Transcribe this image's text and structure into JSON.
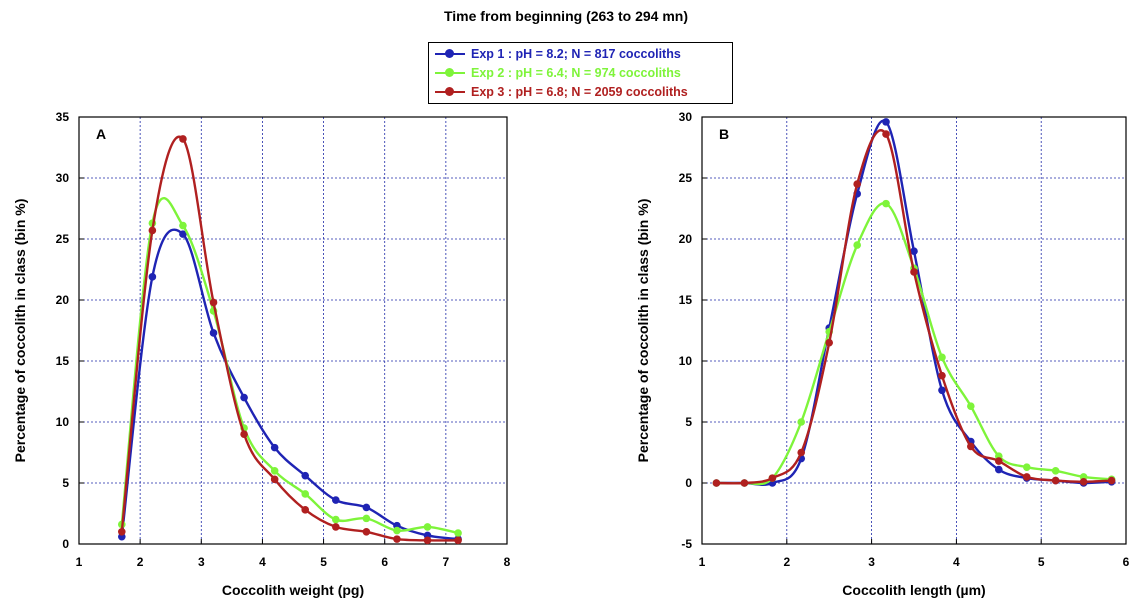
{
  "figure_title": "Time from beginning (263  to 294 mn)",
  "legend": [
    {
      "label": "Exp 1 : pH = 8.2; N = 817 coccoliths",
      "color": "#1f24b4"
    },
    {
      "label": "Exp 2 : pH = 6.4;  N = 974 coccoliths",
      "color": "#7ef43a"
    },
    {
      "label": "Exp 3 : pH = 6.8; N = 2059 coccoliths",
      "color": "#b02020"
    }
  ],
  "chart_data": [
    {
      "type": "line",
      "panel_label": "A",
      "xlabel": "Coccolith weight (pg)",
      "ylabel": "Percentage of coccolith in class (bin %)",
      "xlim": [
        1,
        8
      ],
      "ylim": [
        0,
        35
      ],
      "xticks": [
        1,
        2,
        3,
        4,
        5,
        6,
        7,
        8
      ],
      "yticks": [
        0,
        5,
        10,
        15,
        20,
        25,
        30,
        35
      ],
      "grid": true,
      "series": [
        {
          "name": "Exp 1 : pH = 8.2; N = 817 coccoliths",
          "color": "#1f24b4",
          "x": [
            1.7,
            2.2,
            2.7,
            3.2,
            3.7,
            4.2,
            4.7,
            5.2,
            5.7,
            6.2,
            6.7,
            7.2
          ],
          "y": [
            0.6,
            21.9,
            25.4,
            17.3,
            12.0,
            7.9,
            5.6,
            3.6,
            3.0,
            1.5,
            0.7,
            0.4
          ]
        },
        {
          "name": "Exp 2 : pH = 6.4;  N = 974 coccoliths",
          "color": "#7ef43a",
          "x": [
            1.7,
            2.2,
            2.7,
            3.2,
            3.7,
            4.2,
            4.7,
            5.2,
            5.7,
            6.2,
            6.7,
            7.2
          ],
          "y": [
            1.6,
            26.3,
            26.1,
            19.1,
            9.5,
            6.0,
            4.1,
            2.0,
            2.1,
            1.1,
            1.4,
            0.9
          ]
        },
        {
          "name": "Exp 3 : pH = 6.8; N = 2059 coccoliths",
          "color": "#b02020",
          "x": [
            1.7,
            2.2,
            2.7,
            3.2,
            3.7,
            4.2,
            4.7,
            5.2,
            5.7,
            6.2,
            6.7,
            7.2
          ],
          "y": [
            1.0,
            25.7,
            33.2,
            19.8,
            9.0,
            5.3,
            2.8,
            1.4,
            1.0,
            0.4,
            0.3,
            0.3
          ]
        }
      ]
    },
    {
      "type": "line",
      "panel_label": "B",
      "xlabel": "Coccolith length (µm)",
      "ylabel": "Percentage of coccolith in class (bin %)",
      "xlim": [
        1,
        6
      ],
      "ylim": [
        -5,
        30
      ],
      "xticks": [
        1,
        2,
        3,
        4,
        5,
        6
      ],
      "yticks": [
        -5,
        0,
        5,
        10,
        15,
        20,
        25,
        30
      ],
      "grid": true,
      "series": [
        {
          "name": "Exp 1 : pH = 8.2; N = 817 coccoliths",
          "color": "#1f24b4",
          "x": [
            1.17,
            1.5,
            1.83,
            2.17,
            2.5,
            2.83,
            3.17,
            3.5,
            3.83,
            4.17,
            4.5,
            4.83,
            5.17,
            5.5,
            5.83
          ],
          "y": [
            0,
            0,
            0,
            2.0,
            12.7,
            23.7,
            29.6,
            19.0,
            7.6,
            3.4,
            1.1,
            0.4,
            0.2,
            0,
            0.1
          ]
        },
        {
          "name": "Exp 2 : pH = 6.4;  N = 974 coccoliths",
          "color": "#7ef43a",
          "x": [
            1.17,
            1.5,
            1.83,
            2.17,
            2.5,
            2.83,
            3.17,
            3.5,
            3.83,
            4.17,
            4.5,
            4.83,
            5.17,
            5.5,
            5.83
          ],
          "y": [
            0,
            0,
            0.4,
            5.0,
            12.4,
            19.5,
            22.9,
            17.6,
            10.3,
            6.3,
            2.2,
            1.3,
            1.0,
            0.5,
            0.3
          ]
        },
        {
          "name": "Exp 3 : pH = 6.8; N = 2059 coccoliths",
          "color": "#b02020",
          "x": [
            1.17,
            1.5,
            1.83,
            2.17,
            2.5,
            2.83,
            3.17,
            3.5,
            3.83,
            4.17,
            4.5,
            4.83,
            5.17,
            5.5,
            5.83
          ],
          "y": [
            0,
            0,
            0.4,
            2.5,
            11.5,
            24.5,
            28.6,
            17.3,
            8.8,
            3.0,
            1.8,
            0.5,
            0.2,
            0.1,
            0.2
          ]
        }
      ]
    }
  ]
}
